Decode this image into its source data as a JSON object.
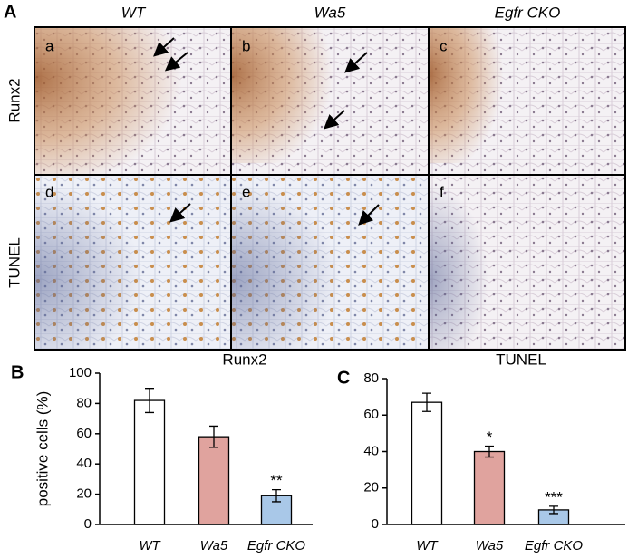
{
  "panel_a": {
    "label": "A",
    "columns": [
      "WT",
      "Wa5",
      "Egfr CKO"
    ],
    "rows": [
      "Runx2",
      "TUNEL"
    ],
    "subpanels": [
      "a",
      "b",
      "c",
      "d",
      "e",
      "f"
    ]
  },
  "chart_data": [
    {
      "type": "bar",
      "label": "B",
      "title": "Runx2",
      "ylabel": "positive cells (%)",
      "categories": [
        "WT",
        "Wa5",
        "Egfr CKO"
      ],
      "values": [
        82,
        58,
        19
      ],
      "errors": [
        8,
        7,
        4
      ],
      "colors": [
        "#ffffff",
        "#e0a39e",
        "#a9c8e8"
      ],
      "ylim": [
        0,
        100
      ],
      "yticks": [
        0,
        20,
        40,
        60,
        80,
        100
      ],
      "annotations": [
        {
          "category": "Egfr CKO",
          "text": "**"
        }
      ]
    },
    {
      "type": "bar",
      "label": "C",
      "title": "TUNEL",
      "categories": [
        "WT",
        "Wa5",
        "Egfr CKO"
      ],
      "values": [
        67,
        40,
        8
      ],
      "errors": [
        5,
        3,
        2
      ],
      "colors": [
        "#ffffff",
        "#e0a39e",
        "#a9c8e8"
      ],
      "ylim": [
        0,
        80
      ],
      "yticks": [
        0,
        20,
        40,
        60,
        80
      ],
      "annotations": [
        {
          "category": "Wa5",
          "text": "*"
        },
        {
          "category": "Egfr CKO",
          "text": "***"
        }
      ]
    }
  ]
}
